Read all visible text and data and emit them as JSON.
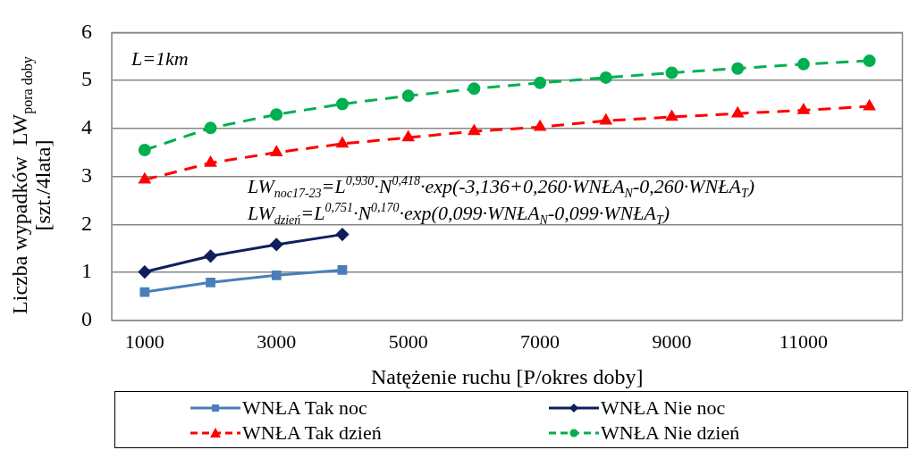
{
  "chart_data": {
    "type": "line",
    "xlabel": "Natężenie ruchu [P/okres doby]",
    "ylabel": "Liczba wypadków  LW$_{pora doby}$\n[szt./4lata]",
    "categories": [
      "1000",
      null,
      "3000",
      null,
      "5000",
      null,
      "7000",
      null,
      "9000",
      null,
      "11000",
      null
    ],
    "ylim": [
      0,
      6
    ],
    "yticks": [
      0,
      1,
      2,
      3,
      4,
      5,
      6
    ],
    "grid": "y",
    "legend": "bottom",
    "annotations": [
      "L=1km",
      "LW$_{noc17-23}$=L$^{0,930}$·N$^{0,418}$·exp(-3,136+0,260·WNŁA$_{N}$-0,260·WNŁA$_{T}$)",
      "LW$_{dzień}$=L$^{0,751}$·N$^{0,170}$·exp(0,099·WNŁA$_{N}$-0,099·WNŁA$_{T}$)"
    ],
    "series": [
      {
        "name": "WNŁA Tak noc",
        "color": "#4a7ebb",
        "marker": "square",
        "line_style": "solid",
        "values": [
          0.59,
          0.79,
          0.94,
          1.05,
          null,
          null,
          null,
          null,
          null,
          null,
          null,
          null
        ]
      },
      {
        "name": "WNŁA Nie noc",
        "color": "#0f1f5c",
        "marker": "diamond",
        "line_style": "solid",
        "values": [
          1.01,
          1.34,
          1.58,
          1.79,
          null,
          null,
          null,
          null,
          null,
          null,
          null,
          null
        ]
      },
      {
        "name": "WNŁA Tak dzień",
        "color": "#ff0000",
        "marker": "triangle",
        "line_style": "dashed",
        "values": [
          2.93,
          3.28,
          3.5,
          3.68,
          3.81,
          3.94,
          4.03,
          4.16,
          4.24,
          4.31,
          4.38,
          4.46
        ]
      },
      {
        "name": "WNŁA Nie dzień",
        "color": "#00b050",
        "marker": "circle",
        "line_style": "dashed",
        "values": [
          3.55,
          4.01,
          4.29,
          4.51,
          4.68,
          4.83,
          4.95,
          5.06,
          5.16,
          5.25,
          5.34,
          5.41
        ]
      }
    ]
  }
}
